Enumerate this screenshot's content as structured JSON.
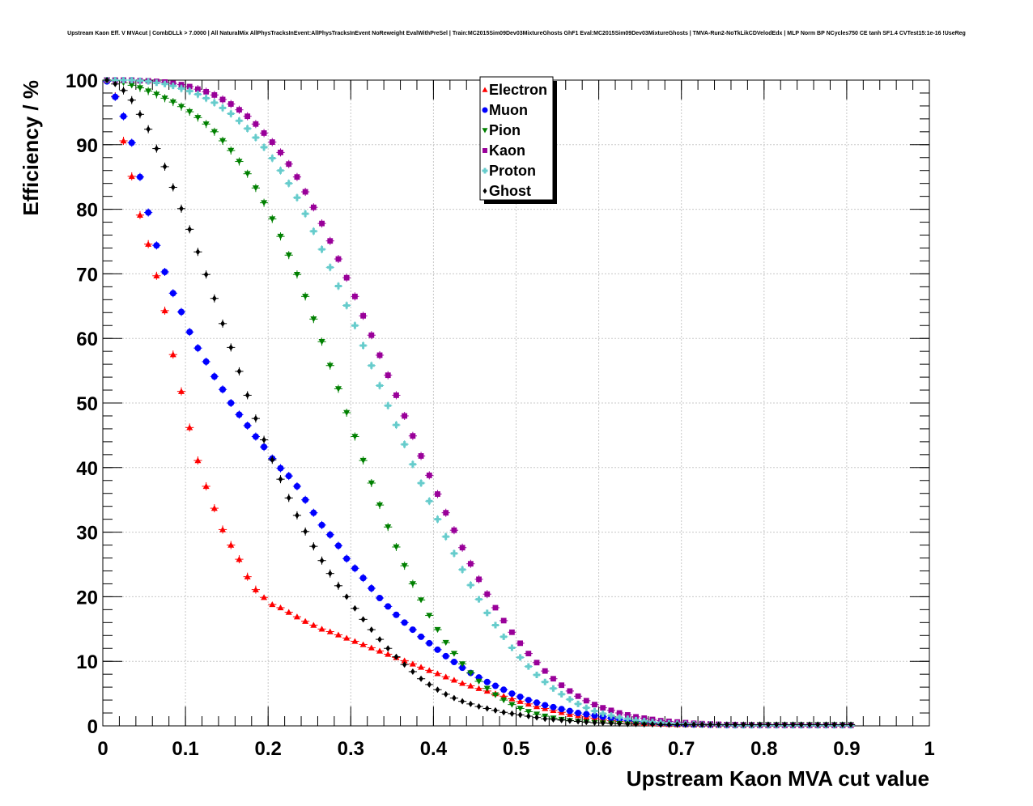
{
  "chart_data": {
    "type": "scatter",
    "title": "Upstream Kaon Eff. V MVAcut | CombDLLk > 7.0000 | All NaturalMix AllPhysTracksInEvent:AllPhysTracksInEvent NoReweight EvalWithPreSel | Train:MC2015Sim09Dev03MixtureGhosts GhF1 Eval:MC2015Sim09Dev03MixtureGhosts | TMVA-Run2-NoTkLikCDVelodEdx | MLP Norm BP NCycles750 CE tanh SF1.4 CVTest15:1e-16 !UseReg",
    "xlabel": "Upstream Kaon MVA cut value",
    "ylabel": "Efficiency / %",
    "xlim": [
      0,
      1
    ],
    "ylim": [
      0,
      100
    ],
    "xticks": [
      "0",
      "0.1",
      "0.2",
      "0.3",
      "0.4",
      "0.5",
      "0.6",
      "0.7",
      "0.8",
      "0.9",
      "1"
    ],
    "yticks": [
      "0",
      "10",
      "20",
      "30",
      "40",
      "50",
      "60",
      "70",
      "80",
      "90",
      "100"
    ],
    "grid": true,
    "legend_position": "top-center",
    "x_start": 0.005,
    "x_step": 0.01,
    "series": [
      {
        "name": "Electron",
        "color": "#ff0000",
        "marker": "triangle-up",
        "values": [
          100,
          97.5,
          90.6,
          85.1,
          79.1,
          74.6,
          69.7,
          64.3,
          57.5,
          51.8,
          46.2,
          41.1,
          37.1,
          33.7,
          30.4,
          28.0,
          25.8,
          23.1,
          21.1,
          19.9,
          18.8,
          18.3,
          17.6,
          16.9,
          16.2,
          15.6,
          15.0,
          14.6,
          14.1,
          13.6,
          13.1,
          12.6,
          12.1,
          11.6,
          11.1,
          10.6,
          10.1,
          9.6,
          9.1,
          8.6,
          8.1,
          7.6,
          7.1,
          6.6,
          6.2,
          5.8,
          5.4,
          5.0,
          4.6,
          4.2,
          3.8,
          3.4,
          3.0,
          2.7,
          2.4,
          2.1,
          1.8,
          1.6,
          1.4,
          1.2,
          1.0,
          0.8,
          0.7,
          0.6,
          0.5,
          0.4,
          0.35,
          0.3,
          0.25,
          0.2,
          0.2,
          0.15,
          0.15,
          0.1,
          0.1,
          0.1,
          0.1,
          0.1,
          0.1,
          0.1,
          0.1,
          0.1,
          0.1,
          0.1,
          0.1,
          0.1,
          0.1,
          0.1,
          0.1,
          0.1,
          0.1
        ]
      },
      {
        "name": "Muon",
        "color": "#0000ff",
        "marker": "circle",
        "values": [
          99.8,
          97.4,
          94.4,
          90.3,
          85.0,
          79.5,
          74.4,
          70.3,
          67.0,
          64.1,
          61.0,
          58.5,
          56.4,
          54.1,
          52.1,
          50.0,
          48.2,
          46.5,
          44.8,
          43.2,
          41.4,
          39.9,
          38.7,
          37.1,
          35.0,
          33.0,
          31.1,
          29.6,
          27.9,
          25.9,
          24.4,
          22.9,
          21.3,
          19.8,
          18.5,
          17.2,
          16.0,
          14.9,
          13.8,
          12.8,
          11.8,
          10.8,
          9.9,
          9.0,
          8.2,
          7.5,
          6.8,
          6.2,
          5.6,
          5.0,
          4.5,
          4.0,
          3.6,
          3.2,
          2.9,
          2.6,
          2.3,
          2.0,
          1.8,
          1.6,
          1.4,
          1.2,
          1.0,
          0.8,
          0.7,
          0.6,
          0.5,
          0.4,
          0.35,
          0.3,
          0.25,
          0.2,
          0.2,
          0.15,
          0.15,
          0.1,
          0.1,
          0.1,
          0.1,
          0.1,
          0.1,
          0.1,
          0.1,
          0.1,
          0.1,
          0.1,
          0.1,
          0.1,
          0.1,
          0.1,
          0.1
        ]
      },
      {
        "name": "Pion",
        "color": "#008000",
        "marker": "triangle-down",
        "values": [
          100,
          99.9,
          99.6,
          99.2,
          98.8,
          98.3,
          97.8,
          97.2,
          96.6,
          95.9,
          95.1,
          94.2,
          93.2,
          92.0,
          90.6,
          89.1,
          87.4,
          85.5,
          83.3,
          81.0,
          78.5,
          75.8,
          72.9,
          69.9,
          66.5,
          63.0,
          59.5,
          55.8,
          52.2,
          48.5,
          44.8,
          41.1,
          37.6,
          34.2,
          30.8,
          27.7,
          24.8,
          22.0,
          19.5,
          17.1,
          14.9,
          12.9,
          11.2,
          9.6,
          8.2,
          6.9,
          5.8,
          4.8,
          4.0,
          3.3,
          2.7,
          2.2,
          1.8,
          1.5,
          1.2,
          1.0,
          0.8,
          0.7,
          0.6,
          0.5,
          0.45,
          0.4,
          0.35,
          0.3,
          0.3,
          0.25,
          0.25,
          0.2,
          0.2,
          0.2,
          0.2,
          0.2,
          0.2,
          0.2,
          0.2,
          0.2,
          0.2,
          0.2,
          0.2,
          0.2,
          0.2,
          0.2,
          0.2,
          0.2,
          0.2,
          0.2,
          0.2,
          0.2,
          0.2,
          0.2,
          0.2
        ]
      },
      {
        "name": "Kaon",
        "color": "#990099",
        "marker": "square",
        "values": [
          100,
          100,
          100,
          100,
          99.9,
          99.9,
          99.8,
          99.7,
          99.5,
          99.3,
          99.0,
          98.6,
          98.2,
          97.7,
          97.0,
          96.3,
          95.4,
          94.4,
          93.2,
          91.8,
          90.4,
          88.8,
          87.0,
          85.0,
          82.7,
          80.3,
          77.8,
          75.1,
          72.3,
          69.4,
          66.5,
          63.5,
          60.5,
          57.4,
          54.3,
          51.2,
          48.0,
          44.9,
          41.8,
          38.8,
          35.9,
          33.0,
          30.3,
          27.6,
          25.1,
          22.7,
          20.4,
          18.3,
          16.3,
          14.5,
          12.8,
          11.2,
          9.8,
          8.5,
          7.3,
          6.3,
          5.4,
          4.6,
          3.9,
          3.3,
          2.8,
          2.4,
          2.0,
          1.7,
          1.4,
          1.2,
          1.0,
          0.8,
          0.7,
          0.6,
          0.5,
          0.4,
          0.35,
          0.3,
          0.25,
          0.2,
          0.2,
          0.15,
          0.15,
          0.1,
          0.1,
          0.1,
          0.1,
          0.1,
          0.1,
          0.1,
          0.1,
          0.1,
          0.1,
          0.1,
          0.1
        ]
      },
      {
        "name": "Proton",
        "color": "#66cccc",
        "marker": "cross",
        "values": [
          100,
          100,
          100,
          100,
          99.9,
          99.8,
          99.6,
          99.4,
          99.1,
          98.7,
          98.3,
          97.8,
          97.2,
          96.5,
          95.7,
          94.8,
          93.7,
          92.5,
          91.1,
          89.6,
          87.9,
          86.0,
          84.0,
          81.8,
          79.3,
          76.6,
          73.8,
          71.0,
          68.1,
          65.1,
          62.0,
          58.9,
          55.8,
          52.7,
          49.6,
          46.6,
          43.6,
          40.5,
          37.6,
          34.8,
          32.0,
          29.3,
          26.7,
          24.2,
          21.8,
          19.6,
          17.5,
          15.6,
          13.8,
          12.1,
          10.6,
          9.2,
          7.9,
          6.8,
          5.8,
          4.9,
          4.1,
          3.4,
          2.8,
          2.3,
          1.9,
          1.6,
          1.3,
          1.1,
          0.9,
          0.75,
          0.6,
          0.5,
          0.4,
          0.35,
          0.3,
          0.25,
          0.2,
          0.2,
          0.15,
          0.15,
          0.1,
          0.1,
          0.1,
          0.1,
          0.1,
          0.1,
          0.1,
          0.1,
          0.1,
          0.1,
          0.1,
          0.1,
          0.1,
          0.1,
          0.1
        ]
      },
      {
        "name": "Ghost",
        "color": "#000000",
        "marker": "diamond",
        "values": [
          100,
          99.4,
          98.4,
          96.9,
          94.7,
          92.4,
          89.4,
          86.6,
          83.4,
          80.1,
          76.9,
          73.4,
          69.9,
          66.2,
          62.3,
          58.6,
          54.9,
          51.2,
          47.6,
          44.3,
          41.2,
          38.2,
          35.3,
          32.6,
          30.1,
          27.8,
          25.6,
          23.6,
          21.7,
          20.0,
          18.2,
          16.5,
          14.9,
          13.4,
          12.0,
          10.7,
          9.5,
          8.4,
          7.3,
          6.4,
          5.6,
          4.9,
          4.3,
          3.8,
          3.4,
          3.0,
          2.7,
          2.4,
          2.1,
          1.9,
          1.7,
          1.5,
          1.3,
          1.1,
          1.0,
          0.9,
          0.8,
          0.7,
          0.6,
          0.5,
          0.45,
          0.4,
          0.35,
          0.3,
          0.3,
          0.25,
          0.25,
          0.2,
          0.2,
          0.2,
          0.2,
          0.2,
          0.2,
          0.2,
          0.2,
          0.2,
          0.2,
          0.2,
          0.2,
          0.2,
          0.2,
          0.2,
          0.2,
          0.2,
          0.2,
          0.2,
          0.2,
          0.2,
          0.2,
          0.2,
          0.2
        ]
      }
    ]
  }
}
